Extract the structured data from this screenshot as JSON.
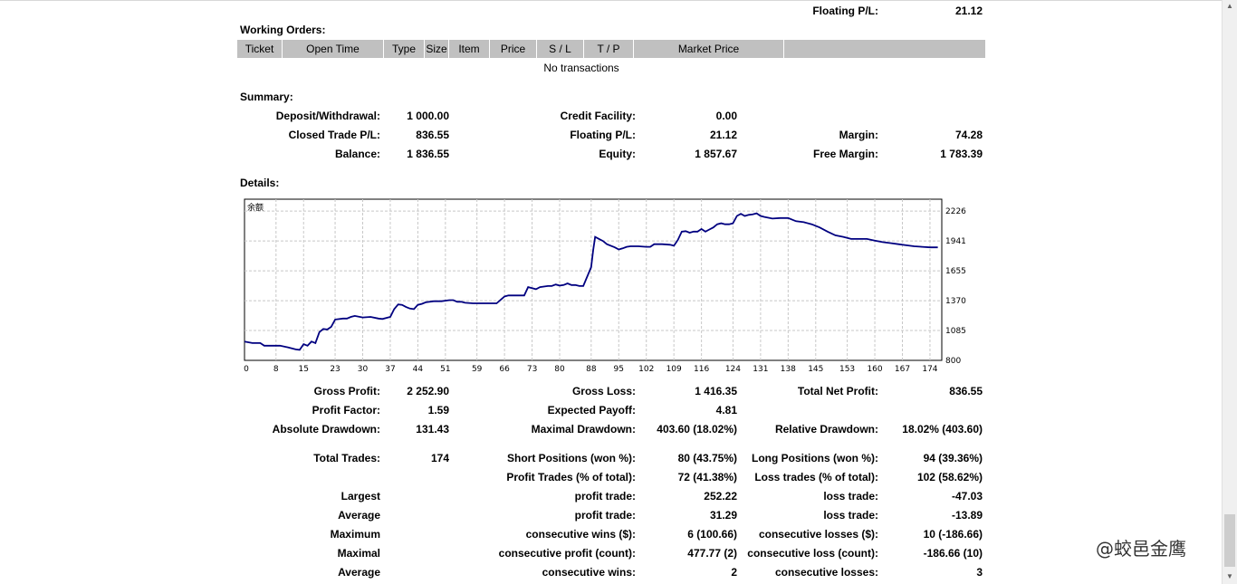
{
  "top": {
    "floating_label": "Floating P/L:",
    "floating_value": "21.12"
  },
  "orders": {
    "title": "Working Orders:",
    "columns": [
      "Ticket",
      "Open Time",
      "Type",
      "Size",
      "Item",
      "Price",
      "S / L",
      "T / P",
      "Market Price",
      ""
    ],
    "empty_text": "No transactions"
  },
  "summary": {
    "title": "Summary:",
    "deposit_label": "Deposit/Withdrawal:",
    "deposit_value": "1 000.00",
    "credit_label": "Credit Facility:",
    "credit_value": "0.00",
    "closed_label": "Closed Trade P/L:",
    "closed_value": "836.55",
    "floating_label": "Floating P/L:",
    "floating_value": "21.12",
    "margin_label": "Margin:",
    "margin_value": "74.28",
    "balance_label": "Balance:",
    "balance_value": "1 836.55",
    "equity_label": "Equity:",
    "equity_value": "1 857.67",
    "free_margin_label": "Free Margin:",
    "free_margin_value": "1 783.39"
  },
  "details": {
    "title": "Details:",
    "gross_profit_label": "Gross Profit:",
    "gross_profit_value": "2 252.90",
    "gross_loss_label": "Gross Loss:",
    "gross_loss_value": "1 416.35",
    "total_net_label": "Total Net Profit:",
    "total_net_value": "836.55",
    "profit_factor_label": "Profit Factor:",
    "profit_factor_value": "1.59",
    "expected_payoff_label": "Expected Payoff:",
    "expected_payoff_value": "4.81",
    "abs_dd_label": "Absolute Drawdown:",
    "abs_dd_value": "131.43",
    "max_dd_label": "Maximal Drawdown:",
    "max_dd_value": "403.60 (18.02%)",
    "rel_dd_label": "Relative Drawdown:",
    "rel_dd_value": "18.02% (403.60)",
    "total_trades_label": "Total Trades:",
    "total_trades_value": "174",
    "short_label": "Short Positions (won %):",
    "short_value": "80 (43.75%)",
    "long_label": "Long Positions (won %):",
    "long_value": "94 (39.36%)",
    "profit_trades_label": "Profit Trades (% of total):",
    "profit_trades_value": "72 (41.38%)",
    "loss_trades_label": "Loss trades (% of total):",
    "loss_trades_value": "102 (58.62%)",
    "largest_label": "Largest",
    "largest_profit_label": "profit trade:",
    "largest_profit_value": "252.22",
    "largest_loss_label": "loss trade:",
    "largest_loss_value": "-47.03",
    "average_label": "Average",
    "average_profit_label": "profit trade:",
    "average_profit_value": "31.29",
    "average_loss_label": "loss trade:",
    "average_loss_value": "-13.89",
    "maximum_label": "Maximum",
    "max_wins_label": "consecutive wins ($):",
    "max_wins_value": "6 (100.66)",
    "max_losses_label": "consecutive losses ($):",
    "max_losses_value": "10 (-186.66)",
    "maximal_label": "Maximal",
    "maximal_profit_label": "consecutive profit (count):",
    "maximal_profit_value": "477.77 (2)",
    "maximal_loss_label": "consecutive loss (count):",
    "maximal_loss_value": "-186.66 (10)",
    "average2_label": "Average",
    "avg_wins_label": "consecutive wins:",
    "avg_wins_value": "2",
    "avg_losses_label": "consecutive losses:",
    "avg_losses_value": "3"
  },
  "watermark": "@蛟邑金鹰",
  "chart_data": {
    "type": "line",
    "title": "余额",
    "line_color": "#000080",
    "grid": true,
    "grid_style": "dashed",
    "x_ticks": [
      0,
      8,
      15,
      23,
      30,
      37,
      44,
      51,
      59,
      66,
      73,
      80,
      88,
      95,
      102,
      109,
      116,
      124,
      131,
      138,
      145,
      153,
      160,
      167,
      174
    ],
    "y_ticks": [
      800,
      1085,
      1370,
      1655,
      1941,
      2226
    ],
    "xlim": [
      0,
      177
    ],
    "ylim": [
      800,
      2340
    ],
    "x": [
      0,
      2,
      4,
      5,
      7,
      9,
      11,
      13,
      14,
      15,
      16,
      17,
      18,
      19,
      20,
      21,
      22,
      23,
      25,
      26,
      27,
      28,
      30,
      32,
      34,
      35,
      37,
      38,
      39,
      40,
      41,
      42,
      43,
      44,
      45,
      46,
      48,
      50,
      52,
      53,
      54,
      55,
      56,
      58,
      60,
      62,
      64,
      66,
      67,
      68,
      69,
      70,
      71,
      72,
      73,
      74,
      75,
      76,
      77,
      78,
      79,
      80,
      81,
      82,
      83,
      84,
      85,
      86,
      88,
      88.5,
      89,
      90,
      91,
      92,
      94,
      95,
      96,
      97,
      98,
      100,
      102,
      103,
      104,
      106,
      108,
      109,
      110,
      111,
      112,
      113,
      114,
      115,
      116,
      117,
      118,
      119,
      120,
      121,
      122,
      123,
      124,
      125,
      126,
      127,
      128,
      129,
      130,
      131,
      132,
      134,
      136,
      138,
      140,
      142,
      144,
      146,
      148,
      150,
      152,
      154,
      156,
      158,
      160,
      162,
      164,
      166,
      168,
      170,
      172,
      174,
      176
    ],
    "y": [
      980,
      965,
      965,
      940,
      940,
      940,
      925,
      905,
      900,
      955,
      940,
      980,
      965,
      1070,
      1100,
      1095,
      1120,
      1190,
      1200,
      1200,
      1215,
      1225,
      1210,
      1215,
      1200,
      1195,
      1215,
      1290,
      1335,
      1330,
      1310,
      1295,
      1290,
      1330,
      1340,
      1355,
      1365,
      1365,
      1375,
      1375,
      1360,
      1360,
      1350,
      1345,
      1345,
      1345,
      1345,
      1410,
      1420,
      1420,
      1420,
      1420,
      1420,
      1500,
      1490,
      1480,
      1500,
      1505,
      1510,
      1510,
      1525,
      1515,
      1520,
      1535,
      1520,
      1520,
      1510,
      1510,
      1690,
      1850,
      1980,
      1960,
      1940,
      1910,
      1880,
      1860,
      1870,
      1885,
      1890,
      1890,
      1885,
      1885,
      1910,
      1910,
      1905,
      1895,
      1950,
      2030,
      2035,
      2020,
      2030,
      2030,
      2055,
      2030,
      2050,
      2070,
      2100,
      2110,
      2100,
      2100,
      2110,
      2180,
      2200,
      2180,
      2190,
      2195,
      2205,
      2180,
      2170,
      2155,
      2160,
      2160,
      2130,
      2120,
      2100,
      2070,
      2030,
      1995,
      1980,
      1960,
      1960,
      1960,
      1945,
      1930,
      1920,
      1910,
      1900,
      1890,
      1885,
      1880,
      1880
    ]
  }
}
